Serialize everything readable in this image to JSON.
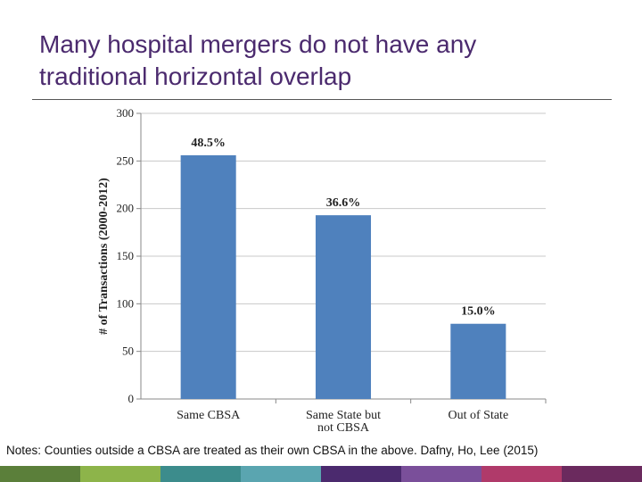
{
  "slide": {
    "title_line1": "Many hospital mergers do not have any",
    "title_line2": "traditional horizontal overlap",
    "notes": "Notes: Counties outside a CBSA are treated as their own CBSA in the above.  Dafny, Ho, Lee (2015)"
  },
  "colors": {
    "title": "#4b2a6e",
    "bar": "#4f81bd",
    "footer": [
      "#5b7f3a",
      "#8db44a",
      "#3c8c8c",
      "#5aa5b0",
      "#4b2a6e",
      "#7a4f9a",
      "#b03a6a",
      "#6b2a5e"
    ]
  },
  "chart_data": {
    "type": "bar",
    "title": "",
    "xlabel": "",
    "ylabel": "# of Transactions (2000-2012)",
    "ylim": [
      0,
      300
    ],
    "yticks": [
      0,
      50,
      100,
      150,
      200,
      250,
      300
    ],
    "categories": [
      [
        "Same CBSA"
      ],
      [
        "Same State but",
        "not CBSA"
      ],
      [
        "Out of State"
      ]
    ],
    "values": [
      256,
      193,
      79
    ],
    "data_labels": [
      "48.5%",
      "36.6%",
      "15.0%"
    ],
    "grid": true,
    "legend": "none"
  }
}
